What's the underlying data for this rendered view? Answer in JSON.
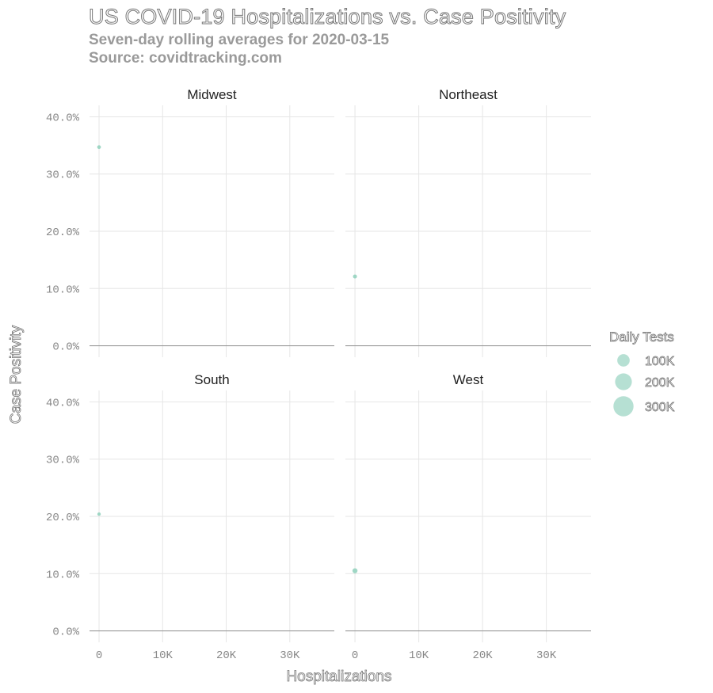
{
  "header": {
    "title": "US COVID-19 Hospitalizations vs. Case Positivity",
    "subtitle": "Seven-day rolling averages for 2020-03-15",
    "source": "Source: covidtracking.com"
  },
  "colors": {
    "point": "#8fd0bb",
    "grid": "#e6e6e6",
    "baseline": "#9a9a9a"
  },
  "chart_data": {
    "type": "scatter",
    "facets": [
      "Midwest",
      "Northeast",
      "South",
      "West"
    ],
    "xlabel": "Hospitalizations",
    "ylabel": "Case Positivity",
    "x_ticks": [
      {
        "value": 0,
        "label": "0"
      },
      {
        "value": 10000,
        "label": "10K"
      },
      {
        "value": 20000,
        "label": "20K"
      },
      {
        "value": 30000,
        "label": "30K"
      }
    ],
    "y_ticks": [
      {
        "value": 0.0,
        "label": "0.0%"
      },
      {
        "value": 0.1,
        "label": "10.0%"
      },
      {
        "value": 0.2,
        "label": "20.0%"
      },
      {
        "value": 0.3,
        "label": "30.0%"
      },
      {
        "value": 0.4,
        "label": "40.0%"
      }
    ],
    "xlim": [
      -1500,
      37000
    ],
    "ylim": [
      -0.02,
      0.42
    ],
    "points": [
      {
        "facet": "Midwest",
        "x": 0,
        "y": 0.347,
        "tests": 3000
      },
      {
        "facet": "Northeast",
        "x": 0,
        "y": 0.121,
        "tests": 4000
      },
      {
        "facet": "South",
        "x": 0,
        "y": 0.204,
        "tests": 2000
      },
      {
        "facet": "West",
        "x": 0,
        "y": 0.105,
        "tests": 9000
      }
    ],
    "legend": {
      "title": "Daily Tests",
      "position": "right",
      "entries": [
        {
          "value": 100000,
          "label": "100K"
        },
        {
          "value": 200000,
          "label": "200K"
        },
        {
          "value": 300000,
          "label": "300K"
        }
      ]
    },
    "grid": true
  }
}
